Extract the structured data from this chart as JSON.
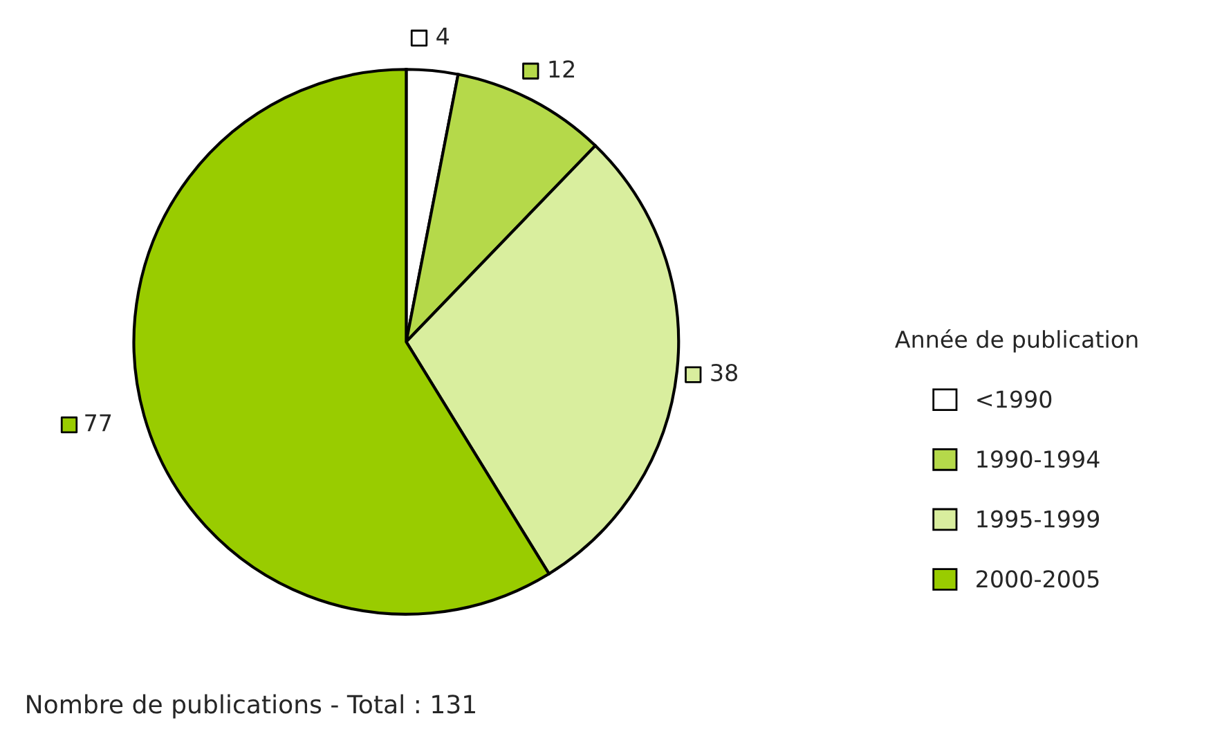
{
  "chart_data": {
    "type": "pie",
    "categories": [
      "<1990",
      "1990-1994",
      "1995-1999",
      "2000-2005"
    ],
    "values": [
      4,
      12,
      38,
      77
    ],
    "colors": [
      "#ffffff",
      "#b5d94a",
      "#d9ee9e",
      "#99cc00"
    ],
    "data_labels": true,
    "legend": "right",
    "legend_title": "Année de publication",
    "annotations": [
      "Nombre de publications - Total : 131"
    ]
  }
}
